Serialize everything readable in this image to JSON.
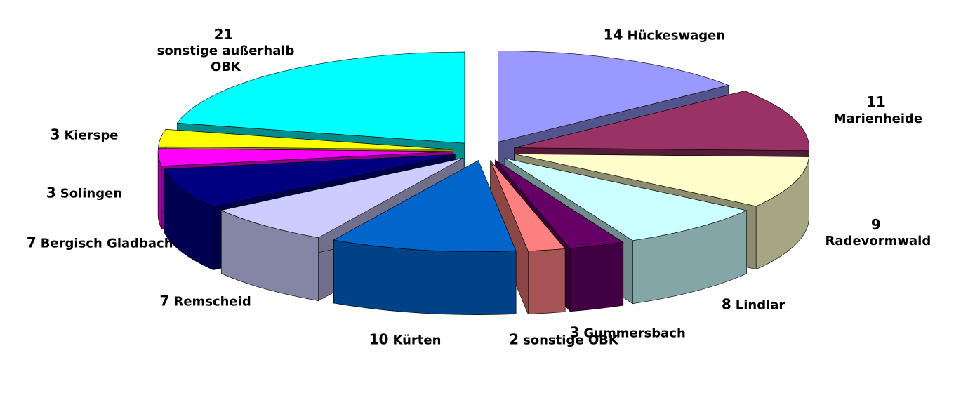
{
  "chart_data": {
    "type": "pie3d",
    "categories": [
      "Hückeswagen",
      "Marienheide",
      "Radevormwald",
      "Lindlar",
      "Gummersbach",
      "sonstige OBK",
      "Kürten",
      "Remscheid",
      "Bergisch Gladbach",
      "Solingen",
      "Kierspe",
      "sonstige außerhalb OBK"
    ],
    "values": [
      14,
      11,
      9,
      8,
      3,
      2,
      10,
      7,
      7,
      3,
      3,
      21
    ],
    "colors": [
      "#9999ff",
      "#993366",
      "#ffffcc",
      "#ccffff",
      "#660066",
      "#ff8080",
      "#0066cc",
      "#ccccff",
      "#000080",
      "#ff00ff",
      "#ffff00",
      "#00ffff"
    ]
  }
}
